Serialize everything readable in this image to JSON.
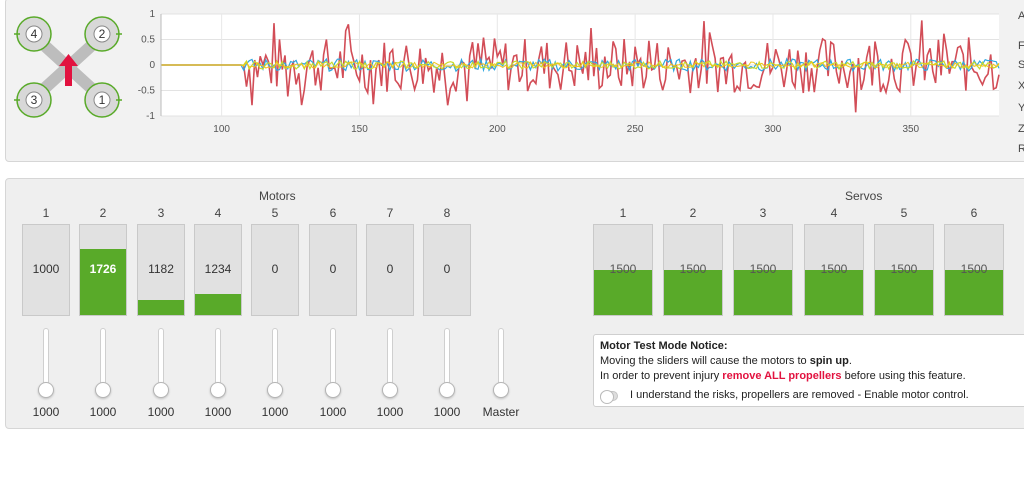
{
  "quad": {
    "motor_labels": [
      "4",
      "2",
      "3",
      "1"
    ]
  },
  "side_letters": [
    "A",
    "F",
    "S",
    "X",
    "Y",
    "Z",
    "R"
  ],
  "chart_data": {
    "type": "line",
    "x_ticks": [
      100,
      150,
      200,
      250,
      300,
      350
    ],
    "y_ticks": [
      "1",
      "0.5",
      "0",
      "-0.5",
      "-1"
    ],
    "xlim": [
      78,
      382
    ],
    "ylim": [
      -1,
      1
    ],
    "grid": true,
    "colors": [
      "#d24d57",
      "#2fa7e0",
      "#c8da2a",
      "#f0c419"
    ]
  },
  "motors": {
    "title": "Motors",
    "channels": [
      {
        "num": "1",
        "value": "1000",
        "level": 0,
        "slider": "1000"
      },
      {
        "num": "2",
        "value": "1726",
        "level": 0.73,
        "slider": "1000"
      },
      {
        "num": "3",
        "value": "1182",
        "level": 0.17,
        "slider": "1000"
      },
      {
        "num": "4",
        "value": "1234",
        "level": 0.23,
        "slider": "1000"
      },
      {
        "num": "5",
        "value": "0",
        "level": 0,
        "slider": "1000"
      },
      {
        "num": "6",
        "value": "0",
        "level": 0,
        "slider": "1000"
      },
      {
        "num": "7",
        "value": "0",
        "level": 0,
        "slider": "1000"
      },
      {
        "num": "8",
        "value": "0",
        "level": 0,
        "slider": "1000"
      }
    ],
    "master_label": "Master"
  },
  "servos": {
    "title": "Servos",
    "channels": [
      {
        "num": "1",
        "value": "1500",
        "level": 0.5
      },
      {
        "num": "2",
        "value": "1500",
        "level": 0.5
      },
      {
        "num": "3",
        "value": "1500",
        "level": 0.5
      },
      {
        "num": "4",
        "value": "1500",
        "level": 0.5
      },
      {
        "num": "5",
        "value": "1500",
        "level": 0.5
      },
      {
        "num": "6",
        "value": "1500",
        "level": 0.5
      }
    ]
  },
  "notice": {
    "title": "Motor Test Mode Notice:",
    "line1_pre": "Moving the sliders will cause the motors to ",
    "line1_bold": "spin up",
    "line1_post": ".",
    "line2_pre": "In order to prevent injury ",
    "line2_red": "remove ALL propellers",
    "line2_post": " before using this feature.",
    "toggle_label": "I understand the risks, propellers are removed - Enable motor control."
  },
  "colors": {
    "accent_green": "#59aa29",
    "notice_red": "#e2123f",
    "arrow_red": "#e2123f"
  }
}
